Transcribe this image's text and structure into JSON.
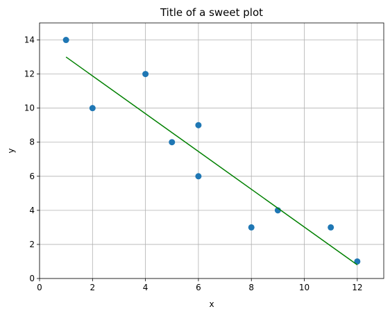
{
  "chart_data": {
    "type": "scatter",
    "title": "Title of a sweet plot",
    "xlabel": "x",
    "ylabel": "y",
    "xlim": [
      0,
      13
    ],
    "ylim": [
      0,
      15
    ],
    "xticks": [
      "0",
      "2",
      "4",
      "6",
      "8",
      "10",
      "12"
    ],
    "yticks": [
      "0",
      "2",
      "4",
      "6",
      "8",
      "10",
      "12",
      "14"
    ],
    "grid": true,
    "series": [
      {
        "type": "scatter",
        "color": "#1f77b4",
        "x": [
          1,
          2,
          4,
          5,
          6,
          6,
          8,
          9,
          11,
          12
        ],
        "y": [
          14,
          10,
          12,
          8,
          9,
          6,
          3,
          4,
          3,
          1
        ]
      },
      {
        "type": "line",
        "color": "#008000",
        "x": [
          1,
          12
        ],
        "y": [
          13.0,
          0.8
        ]
      }
    ]
  }
}
